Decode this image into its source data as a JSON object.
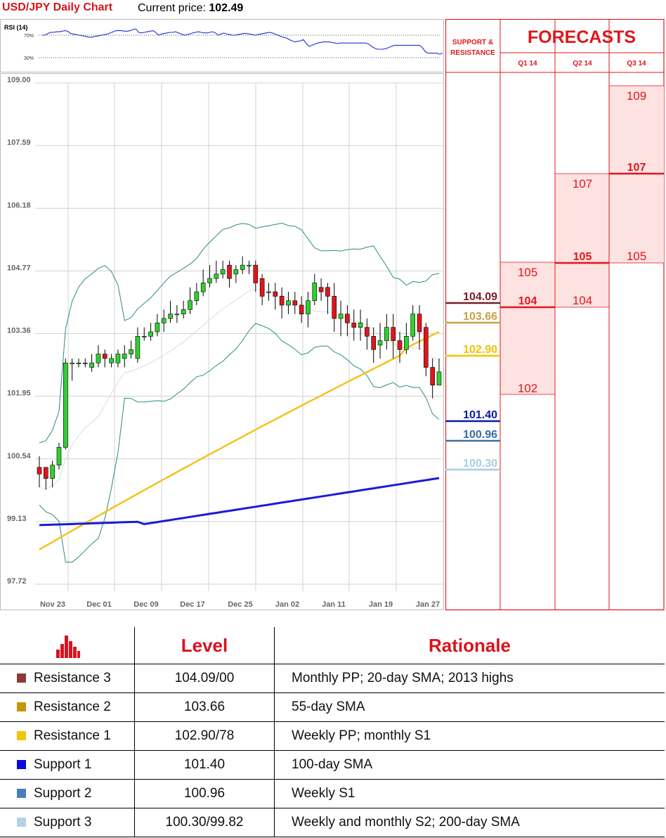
{
  "header": {
    "title": "USD/JPY Daily Chart",
    "price_label": "Current price:",
    "price_value": "102.49"
  },
  "rsi": {
    "label": "RSI (14)",
    "upper": "70%",
    "lower": "30%",
    "values": [
      70,
      70,
      73,
      75,
      75,
      76,
      76,
      77,
      78,
      77,
      73,
      72,
      71,
      70,
      69,
      68,
      67,
      66,
      67,
      68,
      69,
      70,
      71,
      72,
      74,
      76,
      78,
      78,
      78,
      77,
      77,
      78,
      80,
      81,
      75,
      74,
      75,
      76,
      77,
      78,
      75,
      70,
      72,
      73,
      74,
      75,
      75,
      76,
      74,
      72,
      70,
      71,
      72,
      74,
      75,
      76,
      75,
      74,
      74,
      75,
      76,
      74,
      70,
      72,
      74,
      72,
      71,
      70,
      70,
      71,
      72,
      73,
      73,
      72,
      71,
      70,
      71,
      72,
      73,
      74,
      75,
      74,
      72,
      70,
      68,
      66,
      65,
      62,
      60,
      58,
      59,
      60,
      62,
      55,
      50,
      52,
      54,
      56,
      57,
      58,
      58,
      58,
      57,
      56,
      55,
      56,
      56,
      56,
      56,
      56,
      56,
      56,
      56,
      56,
      56,
      54,
      50,
      47,
      45,
      45,
      45,
      46,
      48,
      50,
      52,
      52,
      52,
      52,
      52,
      52,
      52,
      52,
      52,
      52,
      47,
      40,
      38,
      38,
      38,
      38,
      36,
      38
    ]
  },
  "chart_data": {
    "type": "candlestick",
    "title": "USD/JPY Daily Chart",
    "y_ticks": [
      "109.00",
      "107.59",
      "106.18",
      "104.77",
      "103.36",
      "101.95",
      "100.54",
      "99.13",
      "97.72"
    ],
    "x_labels": [
      "Nov 23",
      "Dec 01",
      "Dec 09",
      "Dec 17",
      "Dec 25",
      "Jan 02",
      "Jan 11",
      "Jan 19",
      "Jan 27"
    ],
    "ylim": [
      97.72,
      109.0
    ],
    "candles": [
      [
        100.35,
        100.2,
        100.6,
        99.9
      ],
      [
        100.35,
        100.1,
        100.2,
        99.85
      ],
      [
        100.1,
        100.4,
        100.5,
        99.9
      ],
      [
        100.4,
        100.8,
        100.9,
        100.3
      ],
      [
        100.8,
        102.7,
        102.8,
        100.75
      ],
      [
        102.7,
        102.7,
        102.8,
        102.3
      ],
      [
        102.7,
        102.7,
        102.8,
        102.6
      ],
      [
        102.7,
        102.7,
        102.8,
        102.6
      ],
      [
        102.6,
        102.7,
        102.9,
        102.5
      ],
      [
        102.7,
        102.9,
        103.1,
        102.6
      ],
      [
        102.9,
        102.8,
        103.0,
        102.6
      ],
      [
        102.7,
        102.8,
        102.9,
        102.6
      ],
      [
        102.7,
        102.9,
        103.0,
        102.6
      ],
      [
        102.8,
        102.9,
        103.1,
        102.6
      ],
      [
        102.9,
        103.0,
        103.2,
        102.8
      ],
      [
        102.8,
        103.3,
        103.5,
        102.7
      ],
      [
        103.3,
        103.3,
        103.5,
        103.2
      ],
      [
        103.3,
        103.4,
        103.6,
        103.2
      ],
      [
        103.4,
        103.6,
        103.8,
        103.3
      ],
      [
        103.6,
        103.7,
        103.9,
        103.4
      ],
      [
        103.7,
        103.8,
        104.1,
        103.6
      ],
      [
        103.8,
        103.8,
        104.0,
        103.6
      ],
      [
        103.8,
        103.9,
        104.1,
        103.7
      ],
      [
        103.9,
        104.1,
        104.4,
        103.8
      ],
      [
        104.1,
        104.3,
        104.5,
        104.0
      ],
      [
        104.3,
        104.5,
        104.8,
        104.2
      ],
      [
        104.5,
        104.6,
        104.9,
        104.4
      ],
      [
        104.6,
        104.7,
        105.0,
        104.5
      ],
      [
        104.7,
        104.8,
        105.0,
        104.6
      ],
      [
        104.9,
        104.6,
        105.0,
        104.4
      ],
      [
        104.7,
        104.8,
        104.9,
        104.5
      ],
      [
        104.8,
        104.9,
        105.1,
        104.7
      ],
      [
        104.9,
        104.9,
        105.0,
        104.7
      ],
      [
        104.9,
        104.5,
        105.0,
        104.3
      ],
      [
        104.6,
        104.2,
        104.7,
        104.0
      ],
      [
        104.3,
        104.3,
        104.5,
        104.1
      ],
      [
        104.3,
        104.2,
        104.5,
        103.9
      ],
      [
        104.2,
        104.0,
        104.4,
        103.7
      ],
      [
        104.0,
        104.1,
        104.3,
        103.8
      ],
      [
        104.1,
        104.0,
        104.3,
        103.8
      ],
      [
        104.0,
        103.8,
        104.2,
        103.6
      ],
      [
        103.8,
        104.1,
        104.3,
        103.5
      ],
      [
        104.1,
        104.5,
        104.7,
        104.0
      ],
      [
        104.4,
        104.3,
        104.6,
        104.1
      ],
      [
        104.4,
        104.2,
        104.5,
        103.8
      ],
      [
        104.2,
        103.7,
        104.5,
        103.4
      ],
      [
        103.7,
        103.8,
        104.1,
        103.3
      ],
      [
        103.8,
        103.6,
        104.0,
        103.3
      ],
      [
        103.6,
        103.5,
        103.9,
        103.2
      ],
      [
        103.5,
        103.6,
        103.9,
        103.2
      ],
      [
        103.5,
        103.3,
        103.7,
        103.0
      ],
      [
        103.3,
        103.0,
        103.5,
        102.7
      ],
      [
        103.1,
        103.2,
        103.6,
        102.8
      ],
      [
        103.2,
        103.5,
        103.8,
        103.0
      ],
      [
        103.5,
        103.2,
        103.8,
        102.8
      ],
      [
        103.2,
        103.0,
        103.4,
        102.7
      ],
      [
        103.0,
        103.3,
        103.6,
        102.9
      ],
      [
        103.3,
        103.8,
        104.0,
        103.2
      ],
      [
        103.8,
        103.4,
        104.0,
        103.0
      ],
      [
        103.5,
        102.6,
        103.6,
        102.4
      ],
      [
        102.6,
        102.2,
        102.8,
        101.9
      ],
      [
        102.2,
        102.5,
        102.8,
        102.2
      ]
    ],
    "bands": {
      "upper": [],
      "lower": []
    },
    "overlay_legend": "55-day SMA (gold), 100-day SMA (blue), Bollinger bands (teal)"
  },
  "sr_panel": {
    "support_resistance_label": "SUPPORT & RESISTANCE",
    "forecasts_label": "FORECASTS",
    "quarters": [
      "Q1 14",
      "Q2 14",
      "Q3 14"
    ],
    "levels": [
      {
        "value": "104.09",
        "color": "#7a1a2a"
      },
      {
        "value": "103.66",
        "color": "#c9a24a"
      },
      {
        "value": "102.90",
        "color": "#f2c200"
      },
      {
        "value": "101.40",
        "color": "#0a1aa8"
      },
      {
        "value": "100.96",
        "color": "#3a6e9e"
      },
      {
        "value": "100.30",
        "color": "#a9cde0"
      }
    ],
    "q1": {
      "top": "105",
      "mid": "104",
      "bottom": "102"
    },
    "q2": {
      "top": "107",
      "mid": "105",
      "bottom": "104"
    },
    "q3": {
      "top": "109",
      "mid": "107",
      "bottom": "105"
    }
  },
  "table": {
    "header_level": "Level",
    "header_rationale": "Rationale",
    "rows": [
      {
        "name": "Resistance 3",
        "level": "104.09/00",
        "rationale": "Monthly PP; 20-day SMA; 2013 highs",
        "color": "#8b3a3a"
      },
      {
        "name": "Resistance 2",
        "level": "103.66",
        "rationale": "55-day SMA",
        "color": "#c8960c"
      },
      {
        "name": "Resistance 1",
        "level": "102.90/78",
        "rationale": "Weekly PP; monthly S1",
        "color": "#f5c400"
      },
      {
        "name": "Support 1",
        "level": "101.40",
        "rationale": "100-day SMA",
        "color": "#0a0ae0"
      },
      {
        "name": "Support 2",
        "level": "100.96",
        "rationale": "Weekly S1",
        "color": "#4a7ebb"
      },
      {
        "name": "Support 3",
        "level": "100.30/99.82",
        "rationale": "Weekly and monthly S2; 200-day SMA",
        "color": "#b8cfe8"
      }
    ]
  }
}
